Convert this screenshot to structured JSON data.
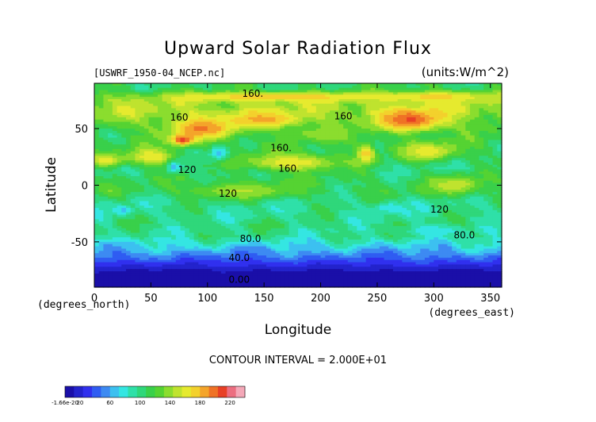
{
  "chart_data": {
    "type": "heatmap",
    "title": "Upward Solar Radiation Flux",
    "source_label": "[USWRF_1950-04_NCEP.nc]",
    "units_label": "(units:W/m^2)",
    "xlabel": "Longitude",
    "ylabel": "Latitude",
    "x_unit_label": "(degrees_east)",
    "y_unit_label": "(degrees_north)",
    "xlim": [
      0,
      360
    ],
    "ylim": [
      -90,
      90
    ],
    "x_ticks": [
      0,
      50,
      100,
      150,
      200,
      250,
      300,
      350
    ],
    "y_ticks": [
      -50,
      0,
      50
    ],
    "contour_interval_text": "CONTOUR INTERVAL = 2.000E+01",
    "contour_labels": [
      {
        "text": "160.",
        "lon": 140,
        "lat": 78
      },
      {
        "text": "160",
        "lon": 220,
        "lat": 58
      },
      {
        "text": "160.",
        "lon": 165,
        "lat": 30
      },
      {
        "text": "160.",
        "lon": 172,
        "lat": 12
      },
      {
        "text": "160",
        "lon": 75,
        "lat": 57
      },
      {
        "text": "120",
        "lon": 82,
        "lat": 11
      },
      {
        "text": "120",
        "lon": 118,
        "lat": -10
      },
      {
        "text": "120",
        "lon": 305,
        "lat": -24
      },
      {
        "text": "80.0",
        "lon": 138,
        "lat": -50
      },
      {
        "text": "80.0",
        "lon": 327,
        "lat": -47
      },
      {
        "text": "40.0",
        "lon": 128,
        "lat": -67
      },
      {
        "text": "0.00",
        "lon": 128,
        "lat": -86
      }
    ],
    "colorbar": {
      "tick_labels": [
        "-1.66e-20",
        "20",
        "60",
        "100",
        "140",
        "180",
        "220"
      ],
      "min": -1.66e-20,
      "max": 240,
      "colors": [
        "#1a0fa8",
        "#2323cc",
        "#3030ee",
        "#2f5cf2",
        "#3d8af2",
        "#3cc0f0",
        "#34e6e2",
        "#2fe0a8",
        "#2fd77a",
        "#39d04a",
        "#55d332",
        "#8bdd2e",
        "#bfe32e",
        "#e6ea2e",
        "#f3d12c",
        "#f4a42a",
        "#ef7225",
        "#e84025",
        "#ec6e80",
        "#f4a8b8"
      ]
    },
    "zonal_profile": [
      {
        "lat": 85,
        "value": 110
      },
      {
        "lat": 75,
        "value": 140
      },
      {
        "lat": 65,
        "value": 145
      },
      {
        "lat": 55,
        "value": 130
      },
      {
        "lat": 45,
        "value": 115
      },
      {
        "lat": 35,
        "value": 112
      },
      {
        "lat": 25,
        "value": 108
      },
      {
        "lat": 15,
        "value": 100
      },
      {
        "lat": 5,
        "value": 110
      },
      {
        "lat": -5,
        "value": 112
      },
      {
        "lat": -15,
        "value": 98
      },
      {
        "lat": -25,
        "value": 95
      },
      {
        "lat": -35,
        "value": 100
      },
      {
        "lat": -45,
        "value": 95
      },
      {
        "lat": -55,
        "value": 70
      },
      {
        "lat": -65,
        "value": 42
      },
      {
        "lat": -75,
        "value": 12
      },
      {
        "lat": -85,
        "value": 2
      }
    ],
    "features": [
      {
        "lon": 95,
        "lat": 50,
        "value": 195,
        "rlon": 30,
        "rlat": 10
      },
      {
        "lon": 78,
        "lat": 40,
        "value": 210,
        "rlon": 10,
        "rlat": 5
      },
      {
        "lon": 150,
        "lat": 58,
        "value": 185,
        "rlon": 35,
        "rlat": 7
      },
      {
        "lon": 280,
        "lat": 58,
        "value": 205,
        "rlon": 30,
        "rlat": 10
      },
      {
        "lon": 160,
        "lat": 78,
        "value": 178,
        "rlon": 90,
        "rlat": 4
      },
      {
        "lon": 300,
        "lat": 78,
        "value": 172,
        "rlon": 50,
        "rlat": 5
      },
      {
        "lon": 50,
        "lat": 25,
        "value": 168,
        "rlon": 20,
        "rlat": 8
      },
      {
        "lon": 10,
        "lat": 22,
        "value": 160,
        "rlon": 18,
        "rlat": 6
      },
      {
        "lon": 175,
        "lat": 20,
        "value": 165,
        "rlon": 45,
        "rlat": 8
      },
      {
        "lon": 240,
        "lat": 28,
        "value": 175,
        "rlon": 8,
        "rlat": 9
      },
      {
        "lon": 295,
        "lat": 30,
        "value": 165,
        "rlon": 25,
        "rlat": 8
      },
      {
        "lon": 320,
        "lat": 0,
        "value": 155,
        "rlon": 20,
        "rlat": 8
      },
      {
        "lon": 130,
        "lat": -5,
        "value": 145,
        "rlon": 45,
        "rlat": 7
      },
      {
        "lon": 200,
        "lat": 45,
        "value": 140,
        "rlon": 30,
        "rlat": 6
      },
      {
        "lon": 110,
        "lat": 28,
        "value": 60,
        "rlon": 8,
        "rlat": 6
      },
      {
        "lon": 70,
        "lat": 16,
        "value": 65,
        "rlon": 6,
        "rlat": 5
      },
      {
        "lon": 25,
        "lat": -22,
        "value": 70,
        "rlon": 8,
        "rlat": 4
      },
      {
        "lon": 260,
        "lat": -20,
        "value": 70,
        "rlon": 12,
        "rlat": 4
      },
      {
        "lon": 300,
        "lat": -40,
        "value": 75,
        "rlon": 25,
        "rlat": 5
      }
    ]
  }
}
